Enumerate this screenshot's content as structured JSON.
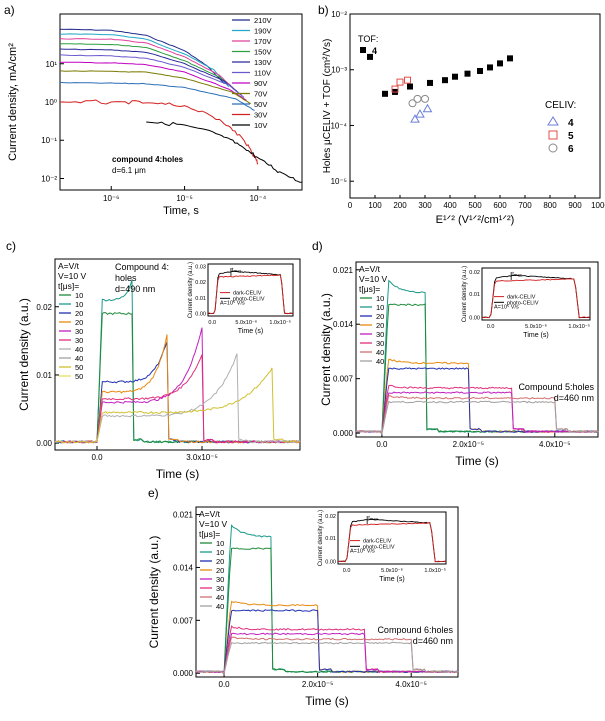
{
  "chart_data": [
    {
      "panel": "a)",
      "type": "line",
      "xscale": "log",
      "yscale": "log",
      "xlabel": "Time, s",
      "ylabel": "Current density, mA/cm²",
      "xlim": [
        2e-07,
        0.0004
      ],
      "ylim": [
        0.005,
        200
      ],
      "xticks": [
        {
          "v": 1e-06,
          "l": "10⁻⁶"
        },
        {
          "v": 1e-05,
          "l": "10⁻⁵"
        },
        {
          "v": 0.0001,
          "l": "10⁻⁴"
        }
      ],
      "yticks": [
        {
          "v": 0.01,
          "l": "10⁻²"
        },
        {
          "v": 0.1,
          "l": "10⁻¹"
        },
        {
          "v": 1,
          "l": "10⁰"
        },
        {
          "v": 10,
          "l": "10¹"
        }
      ],
      "annotation": [
        "compound 4:holes",
        "d=6.1 μm"
      ],
      "series": [
        {
          "name": "210V",
          "color": "#1f2a8a",
          "points": [
            [
              2e-07,
              80
            ],
            [
              1e-06,
              75
            ],
            [
              3e-06,
              55
            ],
            [
              1e-05,
              22
            ],
            [
              2e-05,
              9
            ],
            [
              3.5e-05,
              3
            ]
          ]
        },
        {
          "name": "190V",
          "color": "#1fa7c9",
          "points": [
            [
              2e-07,
              60
            ],
            [
              1e-06,
              58
            ],
            [
              3e-06,
              44
            ],
            [
              1e-05,
              18
            ],
            [
              2.5e-05,
              7
            ],
            [
              4e-05,
              2.5
            ]
          ]
        },
        {
          "name": "170V",
          "color": "#e0409a",
          "points": [
            [
              2e-07,
              45
            ],
            [
              1e-06,
              44
            ],
            [
              3e-06,
              35
            ],
            [
              1e-05,
              15
            ],
            [
              3e-05,
              5
            ],
            [
              5e-05,
              2
            ]
          ]
        },
        {
          "name": "150V",
          "color": "#2e9e3e",
          "points": [
            [
              2e-07,
              33
            ],
            [
              1e-06,
              32
            ],
            [
              3e-06,
              27
            ],
            [
              1e-05,
              12
            ],
            [
              3e-05,
              4.5
            ],
            [
              5.5e-05,
              1.7
            ]
          ]
        },
        {
          "name": "130V",
          "color": "#2a2a9c",
          "points": [
            [
              2e-07,
              24
            ],
            [
              1e-06,
              23
            ],
            [
              3e-06,
              20
            ],
            [
              1e-05,
              10
            ],
            [
              3.5e-05,
              3.5
            ],
            [
              6e-05,
              1.5
            ]
          ]
        },
        {
          "name": "110V",
          "color": "#6a5acd",
          "points": [
            [
              2e-07,
              17
            ],
            [
              1e-06,
              16
            ],
            [
              3e-06,
              14
            ],
            [
              1e-05,
              8
            ],
            [
              4e-05,
              2.8
            ],
            [
              6.5e-05,
              1.3
            ]
          ]
        },
        {
          "name": "90V",
          "color": "#c000c0",
          "points": [
            [
              2e-07,
              11
            ],
            [
              1e-06,
              10.5
            ],
            [
              3e-06,
              9.5
            ],
            [
              1e-05,
              6
            ],
            [
              4e-05,
              2.2
            ],
            [
              7e-05,
              1.1
            ]
          ]
        },
        {
          "name": "70V",
          "color": "#7a7a00",
          "points": [
            [
              2e-07,
              6.5
            ],
            [
              1e-06,
              6.3
            ],
            [
              3e-06,
              6
            ],
            [
              1e-05,
              4.2
            ],
            [
              4.5e-05,
              1.8
            ],
            [
              8e-05,
              0.9
            ]
          ]
        },
        {
          "name": "50V",
          "color": "#2b6fb8",
          "points": [
            [
              2e-07,
              3.2
            ],
            [
              1e-06,
              3.1
            ],
            [
              3e-06,
              3
            ],
            [
              1e-05,
              2.4
            ],
            [
              5e-05,
              1.2
            ],
            [
              9e-05,
              0.6
            ]
          ]
        },
        {
          "name": "30V",
          "color": "#d42020",
          "points": [
            [
              2e-07,
              1.0
            ],
            [
              1e-06,
              1.0
            ],
            [
              3e-06,
              0.95
            ],
            [
              1e-05,
              0.8
            ],
            [
              3e-05,
              0.35
            ],
            [
              6e-05,
              0.12
            ],
            [
              9e-05,
              0.04
            ],
            [
              0.0001,
              0.025
            ]
          ]
        },
        {
          "name": "10V",
          "color": "#000000",
          "points": [
            [
              3e-06,
              0.3
            ],
            [
              1e-05,
              0.25
            ],
            [
              3e-05,
              0.14
            ],
            [
              6e-05,
              0.07
            ],
            [
              0.0001,
              0.035
            ],
            [
              0.0002,
              0.015
            ],
            [
              0.0004,
              0.008
            ]
          ]
        }
      ]
    },
    {
      "panel": "b)",
      "type": "scatter",
      "xlabel": "E¹ᐟ² (V¹ᐟ²/cm¹ᐟ²)",
      "ylabel": "Holes μCELIV + TOF (cm²/Vs)",
      "xlim": [
        0,
        1000
      ],
      "ylim": [
        5e-06,
        0.01
      ],
      "yscale": "log",
      "xticks": [
        0,
        100,
        200,
        300,
        400,
        500,
        600,
        700,
        800,
        900,
        1000
      ],
      "yticks": [
        {
          "v": 1e-05,
          "l": "10⁻⁵"
        },
        {
          "v": 0.0001,
          "l": "10⁻⁴"
        },
        {
          "v": 0.001,
          "l": "10⁻³"
        },
        {
          "v": 0.01,
          "l": "10⁻²"
        }
      ],
      "legend_tof": {
        "title": "TOF:",
        "label": "4"
      },
      "legend_celiv": {
        "title": "CELIV:",
        "items": [
          {
            "label": "4",
            "color": "#6c7fd8",
            "marker": "triangle"
          },
          {
            "label": "5",
            "color": "#e0504a",
            "marker": "square"
          },
          {
            "label": "6",
            "color": "#8a8a8a",
            "marker": "circle"
          }
        ]
      },
      "tof": [
        [
          80,
          0.0017
        ],
        [
          140,
          0.00037
        ],
        [
          180,
          0.0004
        ],
        [
          240,
          0.0005
        ],
        [
          320,
          0.00058
        ],
        [
          380,
          0.00065
        ],
        [
          420,
          0.00075
        ],
        [
          470,
          0.00085
        ],
        [
          520,
          0.00095
        ],
        [
          560,
          0.0011
        ],
        [
          600,
          0.0013
        ],
        [
          640,
          0.0016
        ]
      ],
      "celiv4": [
        [
          260,
          0.00013
        ],
        [
          280,
          0.00016
        ],
        [
          310,
          0.0002
        ]
      ],
      "celiv5": [
        [
          180,
          0.00045
        ],
        [
          200,
          0.0006
        ],
        [
          230,
          0.00065
        ]
      ],
      "celiv6": [
        [
          250,
          0.00025
        ],
        [
          270,
          0.0003
        ],
        [
          300,
          0.0003
        ]
      ]
    },
    {
      "panel": "c)",
      "type": "line",
      "xlabel": "Time (s)",
      "ylabel": "Current density (a.u.)",
      "xlim": [
        -1.2e-05,
        5.8e-05
      ],
      "ylim": [
        -0.001,
        0.027
      ],
      "xticks": [
        {
          "v": 0,
          "l": "0.0"
        },
        {
          "v": 3e-05,
          "l": "3.0x10⁻⁵"
        }
      ],
      "yticks": [
        {
          "v": 0,
          "l": "0.00"
        },
        {
          "v": 0.01,
          "l": "0.01"
        },
        {
          "v": 0.02,
          "l": "0.02"
        }
      ],
      "params": [
        "A=V/t",
        "V=10 V",
        "t[μs]="
      ],
      "legend": [
        {
          "name": "10",
          "color": "#1f8a3a"
        },
        {
          "name": "10",
          "color": "#1a9a8a"
        },
        {
          "name": "20",
          "color": "#2030b0"
        },
        {
          "name": "20",
          "color": "#e88a10"
        },
        {
          "name": "30",
          "color": "#c020c0"
        },
        {
          "name": "30",
          "color": "#e0307a"
        },
        {
          "name": "40",
          "color": "#b0b0b0"
        },
        {
          "name": "40",
          "color": "#a0a0a0"
        },
        {
          "name": "50",
          "color": "#d0c030"
        },
        {
          "name": "50",
          "color": "#e0e060"
        }
      ],
      "label": [
        "Compound 4:",
        "holes",
        "d=490 nm"
      ],
      "inset": {
        "xticks": [
          "0.0",
          "5.0x10⁻⁶",
          "1.0x10⁻⁵"
        ],
        "yticks": [
          "0.00",
          "0.01",
          "0.02",
          "0.03"
        ],
        "xlabel": "Time (s)",
        "ylabel": "Current density (a.u.)",
        "marker": "tₘₐₓ",
        "legend": [
          "dark-CELIV",
          "photo-CELIV"
        ],
        "rate": "A=10⁵ V/s"
      }
    },
    {
      "panel": "d)",
      "type": "line",
      "xlabel": "Time (s)",
      "ylabel": "Current density (a.u.)",
      "xlim": [
        -6e-06,
        5e-05
      ],
      "ylim": [
        -0.0005,
        0.022
      ],
      "xticks": [
        {
          "v": 0,
          "l": "0.0"
        },
        {
          "v": 2e-05,
          "l": "2.0x10⁻⁵"
        },
        {
          "v": 4e-05,
          "l": "4.0x10⁻⁵"
        }
      ],
      "yticks": [
        {
          "v": 0,
          "l": "0.000"
        },
        {
          "v": 0.007,
          "l": "0.007"
        },
        {
          "v": 0.014,
          "l": "0.014"
        },
        {
          "v": 0.021,
          "l": "0.021"
        }
      ],
      "params": [
        "A=V/t",
        "V=10 V",
        "t[μs]="
      ],
      "legend": [
        {
          "name": "10",
          "color": "#1f8a3a"
        },
        {
          "name": "10",
          "color": "#1a9a8a"
        },
        {
          "name": "20",
          "color": "#2030b0"
        },
        {
          "name": "20",
          "color": "#e88a10"
        },
        {
          "name": "30",
          "color": "#c020c0"
        },
        {
          "name": "30",
          "color": "#e0307a"
        },
        {
          "name": "40",
          "color": "#d07070"
        },
        {
          "name": "40",
          "color": "#a0a0a0"
        }
      ],
      "label": [
        "Compound 5:holes",
        "d=460 nm"
      ],
      "inset": {
        "xticks": [
          "0.0",
          "5.0x10⁻⁶",
          "1.0x10⁻⁵"
        ],
        "yticks": [
          "0.00",
          "0.01",
          "0.02"
        ],
        "xlabel": "Time (s)",
        "ylabel": "Current density (a.u.)",
        "marker": "tₘₐₓ",
        "legend": [
          "dark-CELIV",
          "photo-CELIV"
        ],
        "rate": "A=10⁵ V/s"
      }
    },
    {
      "panel": "e)",
      "type": "line",
      "xlabel": "Time (s)",
      "ylabel": "Current density (a.u.)",
      "xlim": [
        -6e-06,
        5e-05
      ],
      "ylim": [
        -0.0005,
        0.022
      ],
      "xticks": [
        {
          "v": 0,
          "l": "0.0"
        },
        {
          "v": 2e-05,
          "l": "2.0x10⁻⁵"
        },
        {
          "v": 4e-05,
          "l": "4.0x10⁻⁵"
        }
      ],
      "yticks": [
        {
          "v": 0,
          "l": "0.000"
        },
        {
          "v": 0.007,
          "l": "0.007"
        },
        {
          "v": 0.014,
          "l": "0.014"
        },
        {
          "v": 0.021,
          "l": "0.021"
        }
      ],
      "params": [
        "A=V/t",
        "V=10 V",
        "t[μs]="
      ],
      "legend": [
        {
          "name": "10",
          "color": "#1f8a3a"
        },
        {
          "name": "10",
          "color": "#1a9a8a"
        },
        {
          "name": "20",
          "color": "#2030b0"
        },
        {
          "name": "20",
          "color": "#e88a10"
        },
        {
          "name": "30",
          "color": "#c020c0"
        },
        {
          "name": "30",
          "color": "#e0307a"
        },
        {
          "name": "40",
          "color": "#d07070"
        },
        {
          "name": "40",
          "color": "#a0a0a0"
        }
      ],
      "label": [
        "Compound 6:holes",
        "d=460 nm"
      ],
      "inset": {
        "xticks": [
          "0.0",
          "5.0x10⁻⁶",
          "1.0x10⁻⁵"
        ],
        "yticks": [
          "0.00",
          "0.01",
          "0.02"
        ],
        "xlabel": "Time (s)",
        "ylabel": "Current density (a.u.)",
        "marker": "tₘₐₓ",
        "legend": [
          "dark-CELIV",
          "photo-CELIV"
        ],
        "rate": "A=10⁵ V/s"
      }
    }
  ]
}
